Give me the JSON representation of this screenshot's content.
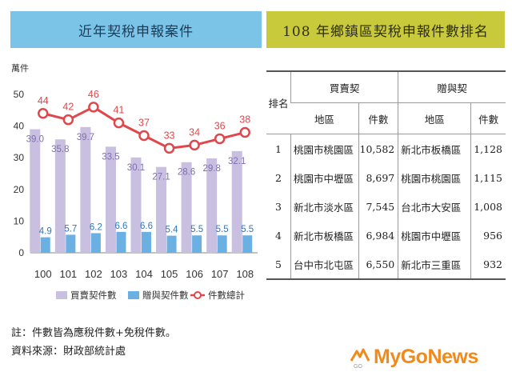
{
  "left_panel": {
    "title": "近年契稅申報案件"
  },
  "right_panel": {
    "title": "108 年鄉鎮區契稅申報件數排名"
  },
  "chart_data": {
    "type": "bar",
    "title": "近年契稅申報案件",
    "unit_label": "萬件",
    "categories": [
      "100",
      "101",
      "102",
      "103",
      "104",
      "105",
      "106",
      "107",
      "108"
    ],
    "ylim": [
      0,
      50
    ],
    "yticks": [
      "0",
      "10",
      "20",
      "30",
      "40",
      "50"
    ],
    "series": [
      {
        "name": "買賣契件數",
        "kind": "bar",
        "color": "#c9bfe0",
        "values": [
          39.0,
          35.8,
          39.7,
          33.5,
          30.1,
          27.1,
          28.6,
          29.8,
          32.1
        ],
        "labels": [
          "39.0",
          "35.8",
          "39.7",
          "33.5",
          "30.1",
          "27.1",
          "28.6",
          "29.8",
          "32.1"
        ]
      },
      {
        "name": "贈與契件數",
        "kind": "bar",
        "color": "#6bb0e2",
        "values": [
          4.9,
          5.7,
          6.2,
          6.6,
          6.6,
          5.4,
          5.5,
          5.5,
          5.5
        ],
        "labels": [
          "4.9",
          "5.7",
          "6.2",
          "6.6",
          "6.6",
          "5.4",
          "5.5",
          "5.5",
          "5.5"
        ]
      },
      {
        "name": "件數總計",
        "kind": "line",
        "color": "#e0474c",
        "values": [
          44,
          42,
          46,
          41,
          37,
          33,
          34,
          36,
          38
        ],
        "labels": [
          "44",
          "42",
          "46",
          "41",
          "37",
          "33",
          "34",
          "36",
          "38"
        ]
      }
    ],
    "grid": false,
    "legend_position": "bottom"
  },
  "ranking_table": {
    "headers": {
      "rank": "排名",
      "sale_group": "買賣契",
      "gift_group": "贈與契",
      "region": "地區",
      "count": "件數"
    },
    "rows": [
      {
        "rank": "1",
        "sale_region": "桃園市桃園區",
        "sale_count": "10,582",
        "gift_region": "新北市板橋區",
        "gift_count": "1,128"
      },
      {
        "rank": "2",
        "sale_region": "桃園市中壢區",
        "sale_count": "8,697",
        "gift_region": "桃園市桃園區",
        "gift_count": "1,115"
      },
      {
        "rank": "3",
        "sale_region": "新北市淡水區",
        "sale_count": "7,545",
        "gift_region": "台北市大安區",
        "gift_count": "1,008"
      },
      {
        "rank": "4",
        "sale_region": "新北市板橋區",
        "sale_count": "6,984",
        "gift_region": "桃園市中壢區",
        "gift_count": "956"
      },
      {
        "rank": "5",
        "sale_region": "台中市北屯區",
        "sale_count": "6,550",
        "gift_region": "新北市三重區",
        "gift_count": "932"
      }
    ]
  },
  "notes": {
    "note": "註：件數皆為應稅件數+免稅件數。",
    "source": "資料來源：財政部統計處"
  },
  "logo": {
    "text": "MyGoNews",
    "small": "GO"
  }
}
